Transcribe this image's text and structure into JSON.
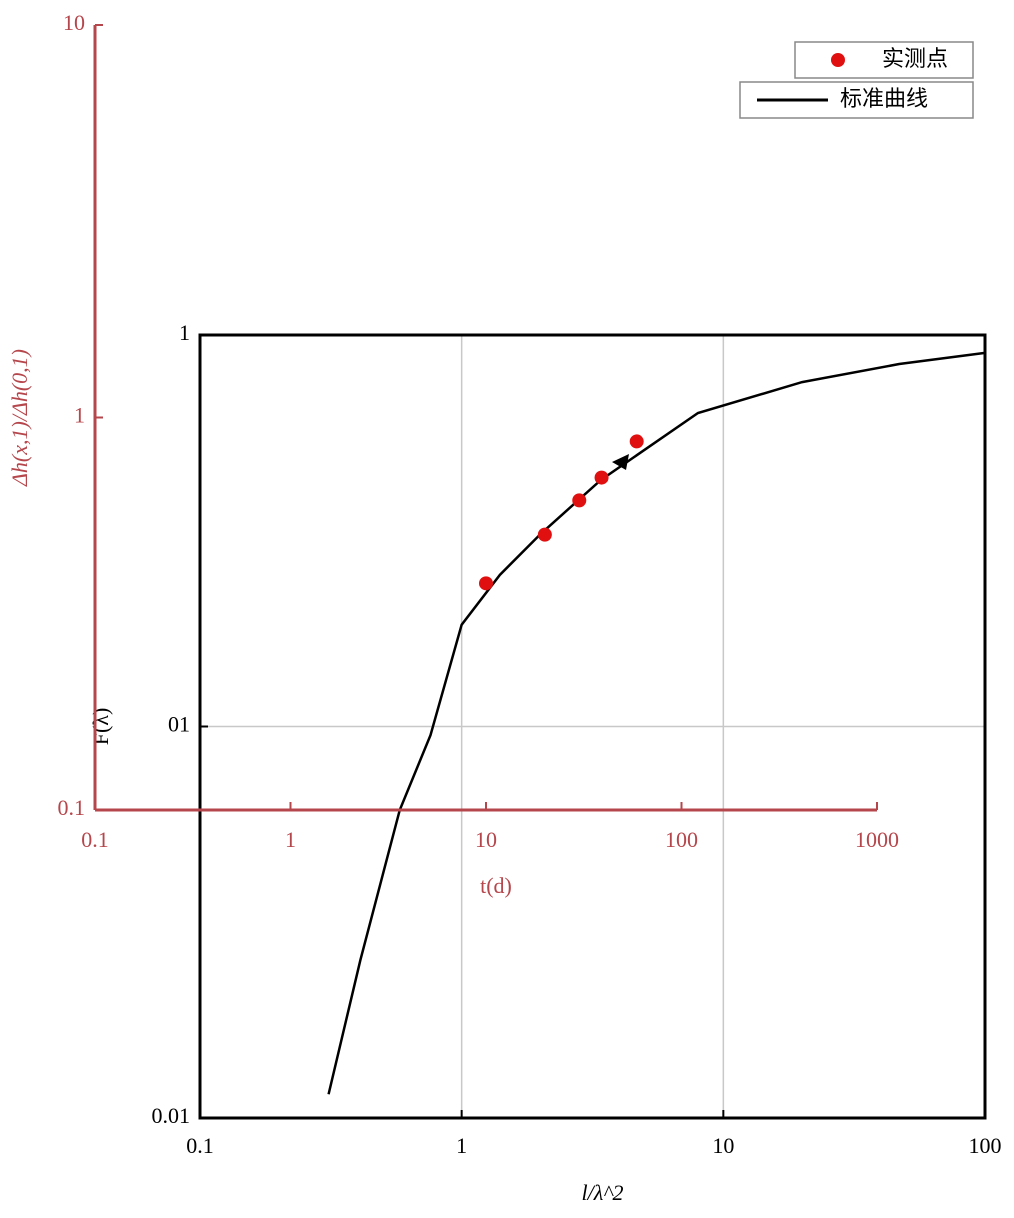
{
  "chart_data": [
    {
      "type": "line",
      "x_label": "l/λ^2",
      "y_label": "F(λ)",
      "xlim": [
        0.1,
        100
      ],
      "ylim": [
        0.01,
        1
      ],
      "xticks": [
        0.1,
        1,
        10,
        100
      ],
      "yticks": [
        0.01,
        {
          "value": 0.1,
          "label": "01"
        },
        1
      ],
      "log_x": true,
      "log_y": true,
      "grid": true,
      "legend": "upper right",
      "axis_color": "#000000",
      "series": [
        {
          "name": "标准曲线",
          "color": "#000000",
          "x": [
            0.31,
            0.41,
            0.58,
            0.76,
            1,
            1.4,
            2,
            3.4,
            8,
            20,
            47,
            100
          ],
          "values": [
            0.0115,
            0.0253,
            0.0612,
            0.095,
            0.182,
            0.244,
            0.31,
            0.426,
            0.632,
            0.758,
            0.843,
            0.9
          ]
        }
      ]
    },
    {
      "type": "scatter",
      "x_label": "t(d)",
      "y_label": "Δh(x,1)/Δh(0,1)",
      "xlim": [
        0.1,
        1000
      ],
      "ylim": [
        0.1,
        10
      ],
      "xticks": [
        0.1,
        1,
        10,
        100,
        1000
      ],
      "yticks": [
        0.1,
        1,
        10
      ],
      "log_x": true,
      "log_y": true,
      "grid": false,
      "axis_color": "#b5464b",
      "series": [
        {
          "name": "实测点",
          "color": "#e01010",
          "x": [
            10,
            20,
            30,
            39,
            59
          ],
          "values": [
            0.378,
            0.503,
            0.615,
            0.703,
            0.869
          ]
        }
      ]
    }
  ]
}
